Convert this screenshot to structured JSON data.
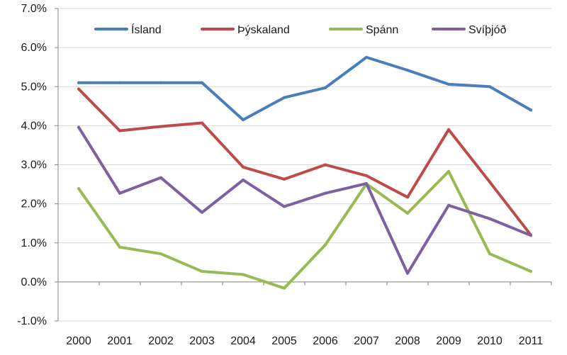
{
  "chart_data": {
    "type": "line",
    "title": "",
    "xlabel": "",
    "ylabel": "",
    "categories": [
      "2000",
      "2001",
      "2002",
      "2003",
      "2004",
      "2005",
      "2006",
      "2007",
      "2008",
      "2009",
      "2010",
      "2011"
    ],
    "ylim": [
      -1.0,
      7.0
    ],
    "ytick_values": [
      -1.0,
      0.0,
      1.0,
      2.0,
      3.0,
      4.0,
      5.0,
      6.0,
      7.0
    ],
    "ytick_labels": [
      "-1.0%",
      "0.0%",
      "1.0%",
      "2.0%",
      "3.0%",
      "4.0%",
      "5.0%",
      "6.0%",
      "7.0%"
    ],
    "grid": true,
    "legend_position": "top",
    "series": [
      {
        "name": "Ísland",
        "color": "#4a7ebb",
        "values": [
          5.1,
          5.1,
          5.1,
          5.1,
          4.15,
          4.72,
          4.97,
          5.75,
          5.42,
          5.06,
          5.0,
          4.4
        ]
      },
      {
        "name": "Þýskaland",
        "color": "#be4b48",
        "values": [
          4.94,
          3.87,
          3.98,
          4.07,
          2.94,
          2.63,
          3.0,
          2.72,
          2.17,
          3.9,
          2.56,
          1.2
        ]
      },
      {
        "name": "Spánn",
        "color": "#98b954",
        "values": [
          2.39,
          0.89,
          0.72,
          0.27,
          0.19,
          -0.16,
          0.95,
          2.51,
          1.76,
          2.83,
          0.72,
          0.27
        ]
      },
      {
        "name": "Svíþjóð",
        "color": "#7d60a0",
        "values": [
          3.96,
          2.27,
          2.67,
          1.78,
          2.61,
          1.93,
          2.27,
          2.52,
          0.22,
          1.96,
          1.62,
          1.19
        ]
      }
    ]
  }
}
